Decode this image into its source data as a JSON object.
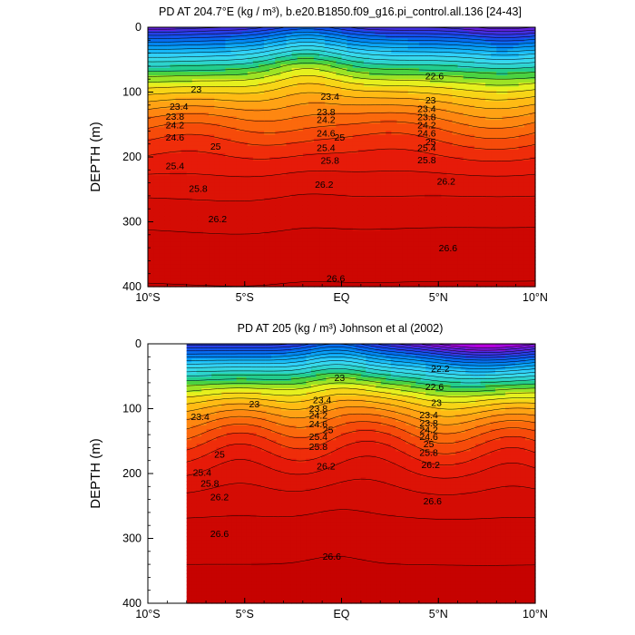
{
  "chart_data": [
    {
      "type": "heatmap",
      "title": "PD AT 204.7°E (kg / m³), b.e20.B1850.f09_g16.pi_control.all.136 [24-43]",
      "ylabel": "DEPTH (m)",
      "xlabel": "",
      "xlim": [
        -10,
        10
      ],
      "ylim": [
        0,
        400
      ],
      "y_inverted": true,
      "data_xmin": -10,
      "x_ticks": [
        -10,
        -5,
        0,
        5,
        10
      ],
      "x_tick_labels": [
        "10°S",
        "5°S",
        "EQ",
        "5°N",
        "10°N"
      ],
      "y_ticks": [
        0,
        100,
        200,
        300,
        400
      ],
      "y_tick_labels": [
        "0",
        "100",
        "200",
        "300",
        "400"
      ],
      "contour_interval": 0.2,
      "levels_range": [
        21.2,
        26.8
      ],
      "contour_labels": [
        {
          "text": "22.6",
          "x": 4.8,
          "y": 75
        },
        {
          "text": "23",
          "x": -7.5,
          "y": 95
        },
        {
          "text": "23.4",
          "x": -0.6,
          "y": 106
        },
        {
          "text": "23",
          "x": 4.6,
          "y": 112
        },
        {
          "text": "23.4",
          "x": -8.4,
          "y": 122
        },
        {
          "text": "23.4",
          "x": 4.4,
          "y": 125
        },
        {
          "text": "23.8",
          "x": -0.8,
          "y": 130
        },
        {
          "text": "23.8",
          "x": -8.6,
          "y": 137
        },
        {
          "text": "23.8",
          "x": 4.4,
          "y": 138
        },
        {
          "text": "24.2",
          "x": -0.8,
          "y": 142
        },
        {
          "text": "24.2",
          "x": -8.6,
          "y": 150
        },
        {
          "text": "24.2",
          "x": 4.4,
          "y": 150
        },
        {
          "text": "24.6",
          "x": -0.8,
          "y": 163
        },
        {
          "text": "24.6",
          "x": -8.6,
          "y": 169
        },
        {
          "text": "24.6",
          "x": 4.4,
          "y": 163
        },
        {
          "text": "25",
          "x": -0.1,
          "y": 169
        },
        {
          "text": "25",
          "x": -6.5,
          "y": 183
        },
        {
          "text": "25",
          "x": 4.6,
          "y": 176
        },
        {
          "text": "25.4",
          "x": -0.8,
          "y": 185
        },
        {
          "text": "25.4",
          "x": -8.6,
          "y": 213
        },
        {
          "text": "25.4",
          "x": 4.4,
          "y": 185
        },
        {
          "text": "25.8",
          "x": -0.6,
          "y": 205
        },
        {
          "text": "25.8",
          "x": -7.4,
          "y": 248
        },
        {
          "text": "25.8",
          "x": 4.4,
          "y": 204
        },
        {
          "text": "26.2",
          "x": -0.9,
          "y": 242
        },
        {
          "text": "26.2",
          "x": -6.4,
          "y": 295
        },
        {
          "text": "26.2",
          "x": 5.4,
          "y": 237
        },
        {
          "text": "26.6",
          "x": 5.5,
          "y": 340
        },
        {
          "text": "26.6",
          "x": -0.3,
          "y": 387
        }
      ]
    },
    {
      "type": "heatmap",
      "title": "PD AT 205 (kg / m³) Johnson et al (2002)",
      "ylabel": "DEPTH (m)",
      "xlabel": "",
      "xlim": [
        -10,
        10
      ],
      "ylim": [
        0,
        400
      ],
      "y_inverted": true,
      "data_xmin": -8,
      "x_ticks": [
        -10,
        -5,
        0,
        5,
        10
      ],
      "x_tick_labels": [
        "10°S",
        "5°S",
        "EQ",
        "5°N",
        "10°N"
      ],
      "y_ticks": [
        0,
        100,
        200,
        300,
        400
      ],
      "y_tick_labels": [
        "0",
        "100",
        "200",
        "300",
        "400"
      ],
      "contour_interval": 0.2,
      "levels_range": [
        21.4,
        26.8
      ],
      "contour_labels": [
        {
          "text": "22.2",
          "x": 5.1,
          "y": 38
        },
        {
          "text": "23",
          "x": -0.1,
          "y": 52
        },
        {
          "text": "22.6",
          "x": 4.8,
          "y": 66
        },
        {
          "text": "23.4",
          "x": -1.0,
          "y": 86
        },
        {
          "text": "23",
          "x": -4.5,
          "y": 92
        },
        {
          "text": "23",
          "x": 4.9,
          "y": 90
        },
        {
          "text": "23.8",
          "x": -1.2,
          "y": 99
        },
        {
          "text": "23.4",
          "x": -7.3,
          "y": 112
        },
        {
          "text": "23.4",
          "x": 4.5,
          "y": 109
        },
        {
          "text": "24.2",
          "x": -1.2,
          "y": 110
        },
        {
          "text": "23.8",
          "x": 4.5,
          "y": 122
        },
        {
          "text": "24.6",
          "x": -1.2,
          "y": 123
        },
        {
          "text": "25",
          "x": -0.7,
          "y": 132
        },
        {
          "text": "24.2",
          "x": 4.5,
          "y": 132
        },
        {
          "text": "25.4",
          "x": -1.2,
          "y": 143
        },
        {
          "text": "24.6",
          "x": 4.5,
          "y": 143
        },
        {
          "text": "25",
          "x": 4.5,
          "y": 154
        },
        {
          "text": "25.8",
          "x": -1.2,
          "y": 158
        },
        {
          "text": "25",
          "x": -6.3,
          "y": 170
        },
        {
          "text": "25.8",
          "x": 4.5,
          "y": 167
        },
        {
          "text": "25.4",
          "x": -7.2,
          "y": 198
        },
        {
          "text": "26.2",
          "x": -0.8,
          "y": 188
        },
        {
          "text": "26.2",
          "x": 4.6,
          "y": 186
        },
        {
          "text": "25.8",
          "x": -6.8,
          "y": 215
        },
        {
          "text": "26.2",
          "x": -6.3,
          "y": 236
        },
        {
          "text": "26.6",
          "x": 4.7,
          "y": 242
        },
        {
          "text": "26.6",
          "x": -6.3,
          "y": 292
        },
        {
          "text": "26.6",
          "x": -0.5,
          "y": 327
        }
      ]
    }
  ],
  "colors": {
    "background": "#ffffff",
    "axis": "#000000",
    "contour_line": "#000000",
    "missing_region": "#ffffff"
  }
}
